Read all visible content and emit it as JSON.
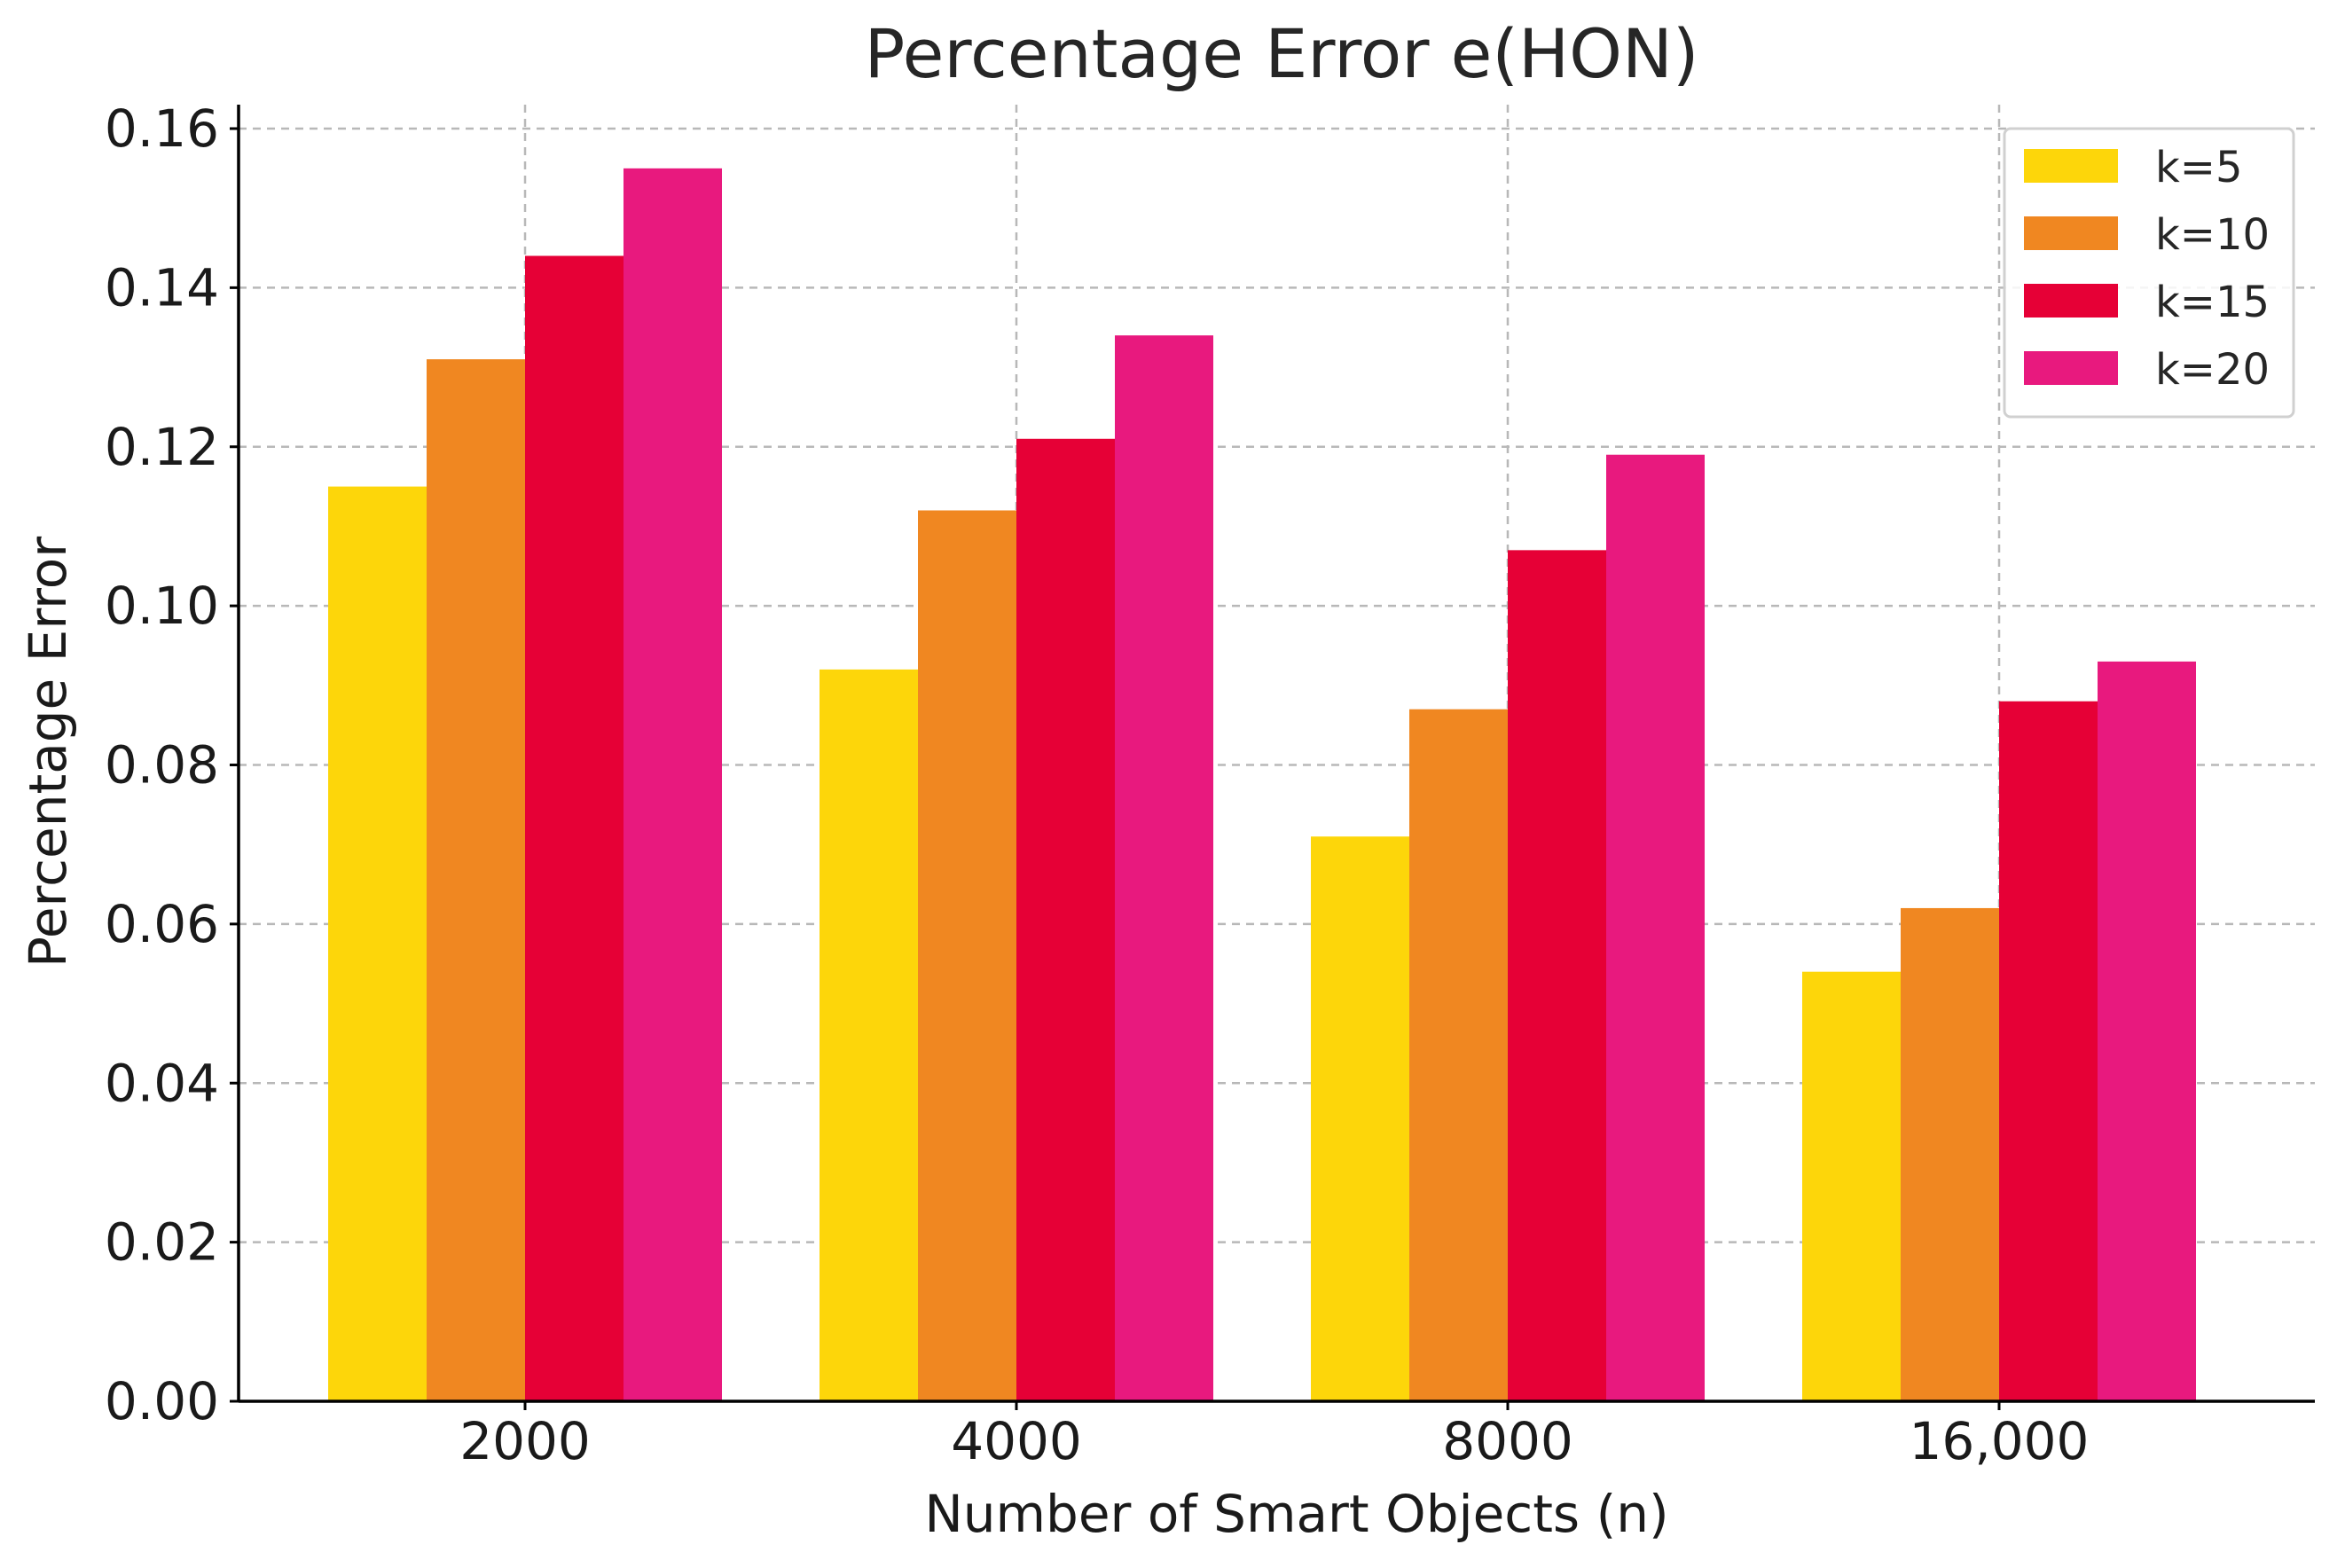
{
  "chart_data": {
    "type": "bar",
    "title": "Percentage Error e(HON)",
    "xlabel": "Number of Smart Objects (n)",
    "ylabel": "Percentage Error",
    "categories": [
      "2000",
      "4000",
      "8000",
      "16,000"
    ],
    "ylim": [
      0,
      0.16
    ],
    "yticks": [
      "0.00",
      "0.02",
      "0.04",
      "0.06",
      "0.08",
      "0.10",
      "0.12",
      "0.14",
      "0.16"
    ],
    "grid": true,
    "legend_position": "top-right",
    "series": [
      {
        "name": "k=5",
        "color": "#FDD60A",
        "values": [
          0.115,
          0.092,
          0.071,
          0.054
        ]
      },
      {
        "name": "k=10",
        "color": "#F08721",
        "values": [
          0.131,
          0.112,
          0.087,
          0.062
        ]
      },
      {
        "name": "k=15",
        "color": "#E60036",
        "values": [
          0.144,
          0.121,
          0.107,
          0.088
        ]
      },
      {
        "name": "k=20",
        "color": "#E8197E",
        "values": [
          0.155,
          0.134,
          0.119,
          0.093
        ]
      }
    ]
  }
}
